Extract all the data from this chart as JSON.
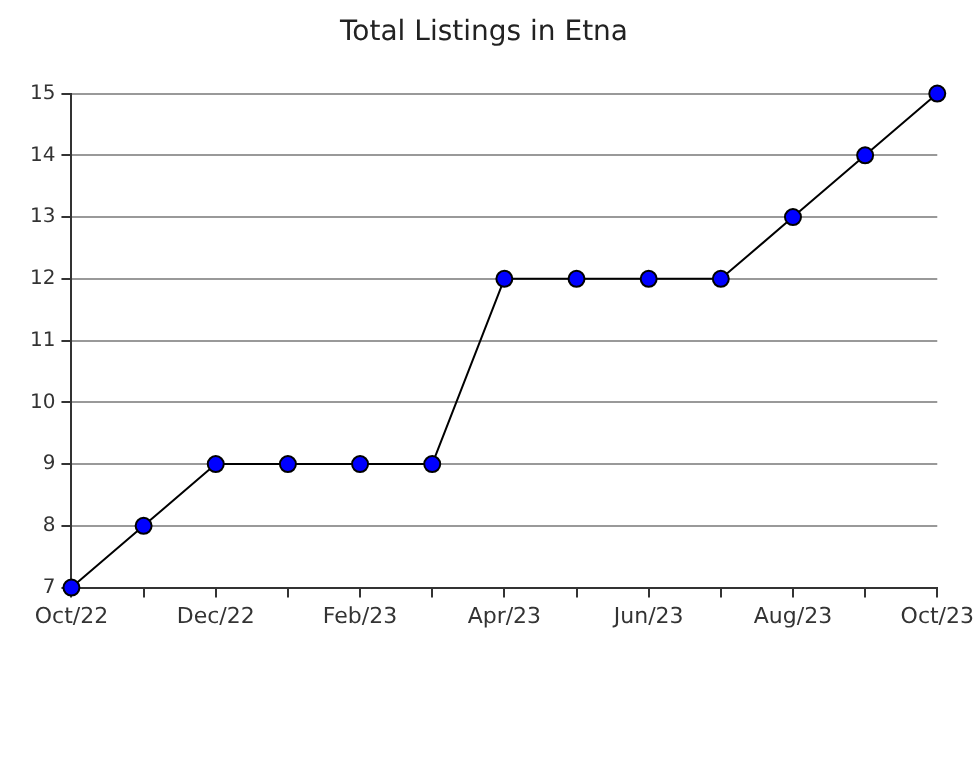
{
  "chart_data": {
    "type": "line",
    "title": "Total Listings in Etna",
    "categories": [
      "Oct/22",
      null,
      "Dec/22",
      null,
      "Feb/23",
      null,
      "Apr/23",
      null,
      "Jun/23",
      null,
      "Aug/23",
      null,
      "Oct/23"
    ],
    "series": [
      {
        "color": "#000000",
        "values": [
          7,
          8,
          9,
          9,
          9,
          9,
          12,
          12,
          12,
          12,
          13,
          14,
          15
        ]
      }
    ],
    "ylim": [
      7,
      15
    ],
    "yticks": [
      7,
      8,
      9,
      10,
      11,
      12,
      13,
      14,
      15
    ],
    "grid": "y",
    "legend": false,
    "marker": "circle",
    "line_style": "solid"
  }
}
